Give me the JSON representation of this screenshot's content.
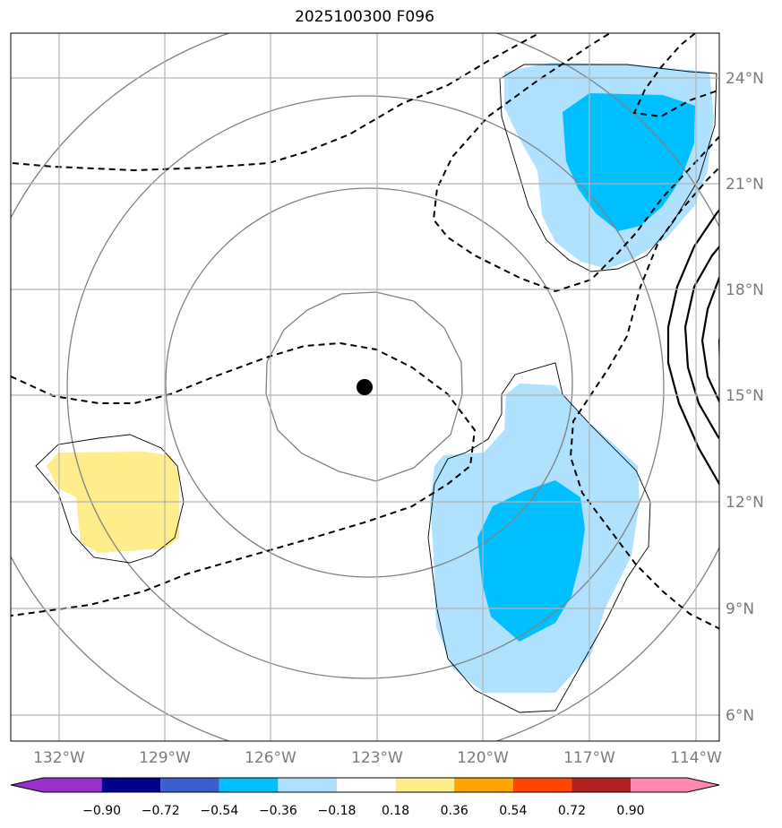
{
  "title": "2025100300 F096",
  "lon_ticks": [
    "132°W",
    "129°W",
    "126°W",
    "123°W",
    "120°W",
    "117°W",
    "114°W"
  ],
  "lat_ticks": [
    "24°N",
    "21°N",
    "18°N",
    "15°N",
    "12°N",
    "9°N",
    "6°N"
  ],
  "colorbar": {
    "labels": [
      "−0.90",
      "−0.72",
      "−0.54",
      "−0.36",
      "−0.18",
      "0.18",
      "0.36",
      "0.54",
      "0.72",
      "0.90"
    ],
    "colors": [
      "#9932cc",
      "#00008b",
      "#3a5fcd",
      "#00bfff",
      "#b0e2ff",
      "#ffffff",
      "#ffec8b",
      "#ffa500",
      "#ff4500",
      "#b22222",
      "#ff88b0"
    ]
  },
  "storm_center": {
    "lon": -123.3,
    "lat": 15.2
  },
  "colors": {
    "light_blue": "#b0e2ff",
    "deep_sky_blue": "#00bfff",
    "light_yellow": "#ffec8b",
    "grid": "#b3b3b3",
    "contour_gray": "#808080"
  }
}
